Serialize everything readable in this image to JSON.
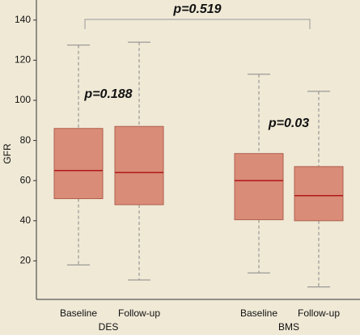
{
  "chart_data": {
    "type": "box",
    "y_label": "GFR",
    "categories": [
      "Baseline",
      "Follow-up",
      "Baseline",
      "Follow-up"
    ],
    "groups": [
      "DES",
      "BMS"
    ],
    "boxes": [
      {
        "whisker_high": 127.5,
        "q3": 86,
        "median": 65,
        "q1": 51,
        "whisker_low": 18
      },
      {
        "whisker_high": 129,
        "q3": 87,
        "median": 64,
        "q1": 48,
        "whisker_low": 10.5
      },
      {
        "whisker_high": 113,
        "q3": 73.5,
        "median": 60,
        "q1": 40.5,
        "whisker_low": 14
      },
      {
        "whisker_high": 104.5,
        "q3": 67,
        "median": 52.5,
        "q1": 40,
        "whisker_low": 7
      }
    ],
    "annotations": [
      "p=0.519",
      "p=0.188",
      "p=0.03"
    ],
    "color": "#d98c78",
    "edge_color": "#b0604e",
    "median_color": "#b01818",
    "ylim": [
      0,
      150
    ],
    "yticks": [
      20,
      40,
      60,
      80,
      100,
      120,
      140
    ]
  }
}
